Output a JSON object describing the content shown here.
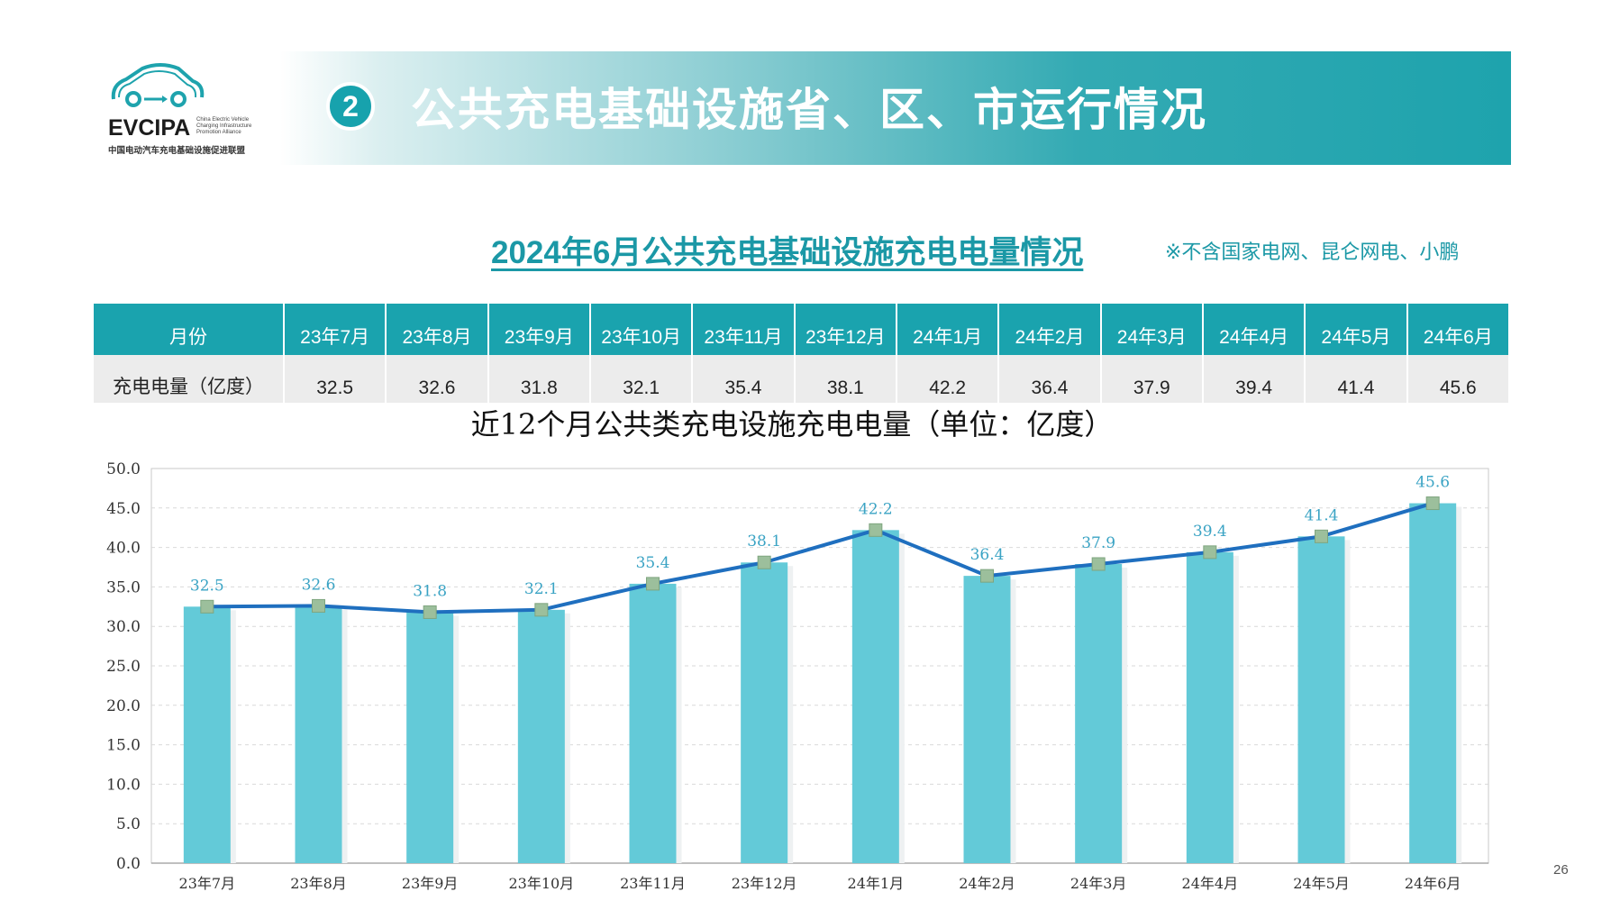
{
  "logo": {
    "name": "EVCIPA",
    "sub": "China Electric Vehicle Charging Infrastructure Promotion Alliance",
    "cn": "中国电动汽车充电基础设施促进联盟"
  },
  "banner": {
    "number": "2",
    "title": "公共充电基础设施省、区、市运行情况"
  },
  "subtitle": "2024年6月公共充电基础设施充电电量情况",
  "note": "※不含国家电网、昆仑网电、小鹏",
  "table": {
    "header_label": "月份",
    "row_label": "充电电量（亿度）",
    "months": [
      "23年7月",
      "23年8月",
      "23年9月",
      "23年10月",
      "23年11月",
      "23年12月",
      "24年1月",
      "24年2月",
      "24年3月",
      "24年4月",
      "24年5月",
      "24年6月"
    ],
    "values": [
      "32.5",
      "32.6",
      "31.8",
      "32.1",
      "35.4",
      "38.1",
      "42.2",
      "36.4",
      "37.9",
      "39.4",
      "41.4",
      "45.6"
    ]
  },
  "chart_data": {
    "type": "bar",
    "title": "近12个月公共类充电设施充电电量（单位：亿度）",
    "categories": [
      "23年7月",
      "23年8月",
      "23年9月",
      "23年10月",
      "23年11月",
      "23年12月",
      "24年1月",
      "24年2月",
      "24年3月",
      "24年4月",
      "24年5月",
      "24年6月"
    ],
    "series": [
      {
        "type": "bar",
        "values": [
          32.5,
          32.6,
          31.8,
          32.1,
          35.4,
          38.1,
          42.2,
          36.4,
          37.9,
          39.4,
          41.4,
          45.6
        ]
      },
      {
        "type": "line",
        "values": [
          32.5,
          32.6,
          31.8,
          32.1,
          35.4,
          38.1,
          42.2,
          36.4,
          37.9,
          39.4,
          41.4,
          45.6
        ]
      }
    ],
    "data_labels": [
      "32.5",
      "32.6",
      "31.8",
      "32.1",
      "35.4",
      "38.1",
      "42.2",
      "36.4",
      "37.9",
      "39.4",
      "41.4",
      "45.6"
    ],
    "ylim": [
      0,
      50
    ],
    "yticks": [
      "0.0",
      "5.0",
      "10.0",
      "15.0",
      "20.0",
      "25.0",
      "30.0",
      "35.0",
      "40.0",
      "45.0",
      "50.0"
    ],
    "grid": true,
    "colors": {
      "bar": "#63cad8",
      "line": "#1f6fbf",
      "marker": "#9cbf9c",
      "label": "#3aa3c4"
    }
  },
  "page_number": "26"
}
